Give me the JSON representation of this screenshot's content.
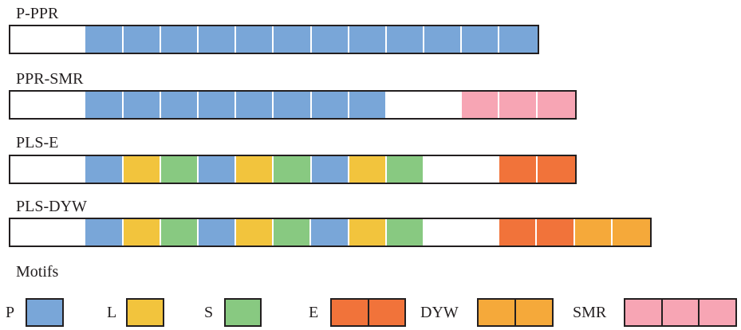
{
  "colors": {
    "P": "#79a6d8",
    "L": "#f2c43d",
    "S": "#88c981",
    "E": "#f1733a",
    "DYW": "#f5a93a",
    "SMR": "#f7a5b4",
    "none": "#ffffff"
  },
  "proteins": [
    {
      "name": "P-PPR",
      "segments": [
        "none",
        "none",
        "P",
        "P",
        "P",
        "P",
        "P",
        "P",
        "P",
        "P",
        "P",
        "P",
        "P",
        "P"
      ]
    },
    {
      "name": "PPR-SMR",
      "segments": [
        "none",
        "none",
        "P",
        "P",
        "P",
        "P",
        "P",
        "P",
        "P",
        "P",
        "none",
        "none",
        "SMR",
        "SMR",
        "SMR"
      ]
    },
    {
      "name": "PLS-E",
      "segments": [
        "none",
        "none",
        "P",
        "L",
        "S",
        "P",
        "L",
        "S",
        "P",
        "L",
        "S",
        "none",
        "none",
        "E",
        "E"
      ]
    },
    {
      "name": "PLS-DYW",
      "segments": [
        "none",
        "none",
        "P",
        "L",
        "S",
        "P",
        "L",
        "S",
        "P",
        "L",
        "S",
        "none",
        "none",
        "E",
        "E",
        "DYW",
        "DYW"
      ]
    }
  ],
  "motifs_title": "Motifs",
  "legend": [
    {
      "label": "P",
      "motif": "P",
      "cells": 1
    },
    {
      "label": "L",
      "motif": "L",
      "cells": 1
    },
    {
      "label": "S",
      "motif": "S",
      "cells": 1
    },
    {
      "label": "E",
      "motif": "E",
      "cells": 2
    },
    {
      "label": "DYW",
      "motif": "DYW",
      "cells": 2
    },
    {
      "label": "SMR",
      "motif": "SMR",
      "cells": 3
    }
  ]
}
